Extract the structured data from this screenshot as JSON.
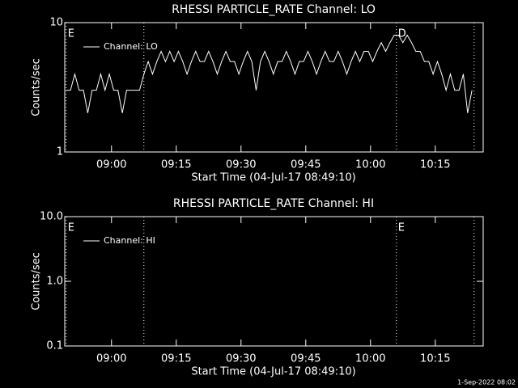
{
  "chart_data": [
    {
      "type": "line",
      "title": "RHESSI PARTICLE_RATE Channel: LO",
      "xlabel": "Start Time (04-Jul-17 08:49:10)",
      "ylabel": "Counts/sec",
      "x": [
        529.5,
        530.5,
        531.5,
        532.5,
        533.5,
        534.5,
        535.5,
        536.5,
        537.5,
        538.5,
        539.5,
        540.5,
        541.5,
        542.5,
        543.5,
        544.5,
        545.5,
        546.5,
        547.5,
        548.5,
        549.5,
        550.5,
        551.5,
        552.5,
        553.5,
        554.5,
        555.5,
        556.5,
        557.5,
        558.5,
        559.5,
        560.5,
        561.5,
        562.5,
        563.5,
        564.5,
        565.5,
        566.5,
        567.5,
        568.5,
        569.5,
        570.5,
        571.5,
        572.5,
        573.5,
        574.5,
        575.5,
        576.5,
        577.5,
        578.5,
        579.5,
        580.5,
        581.5,
        582.5,
        583.5,
        584.5,
        585.5,
        586.5,
        587.5,
        588.5,
        589.5,
        590.5,
        591.5,
        592.5,
        593.5,
        594.5,
        595.5,
        596.5,
        597.5,
        598.5,
        599.5,
        600.5,
        601.5,
        602.5,
        603.5,
        604.5,
        605.5,
        606.5,
        607.5,
        608.5,
        609.5,
        610.5,
        611.5,
        612.5,
        613.5,
        614.5,
        615.5,
        616.5,
        617.5,
        618.5,
        619.5,
        620.5,
        621.5,
        622.5,
        623.5
      ],
      "series": [
        {
          "name": "Channel: LO",
          "color": "#ffffff",
          "values": [
            3,
            3,
            4,
            3,
            3,
            2,
            3,
            3,
            4,
            3,
            4,
            3,
            3,
            2,
            3,
            3,
            3,
            3,
            4,
            5,
            4,
            5,
            6,
            5,
            6,
            5,
            6,
            5,
            4,
            5,
            6,
            5,
            5,
            6,
            5,
            4,
            5,
            6,
            5,
            5,
            4,
            5,
            6,
            5,
            3,
            5,
            6,
            5,
            4,
            5,
            5,
            6,
            5,
            4,
            5,
            5,
            6,
            5,
            4,
            5,
            6,
            5,
            5,
            6,
            5,
            4,
            5,
            6,
            5,
            6,
            6,
            5,
            6,
            7,
            6,
            7,
            8,
            8,
            7,
            8,
            7,
            6,
            6,
            5,
            5,
            4,
            5,
            4,
            3,
            4,
            3,
            3,
            4,
            2,
            3
          ]
        }
      ],
      "xlim": [
        529.17,
        626.1
      ],
      "xticks": [
        {
          "value": 540,
          "label": "09:00"
        },
        {
          "value": 555,
          "label": "09:15"
        },
        {
          "value": 570,
          "label": "09:30"
        },
        {
          "value": 585,
          "label": "09:45"
        },
        {
          "value": 600,
          "label": "10:00"
        },
        {
          "value": 615,
          "label": "10:15"
        }
      ],
      "yscale": "log",
      "ylim": [
        1,
        10
      ],
      "yticks": [
        1,
        10
      ],
      "annotations": [
        {
          "x": 529.5,
          "label": "E"
        },
        {
          "x": 547.5,
          "label": ""
        },
        {
          "x": 606,
          "label": "D"
        },
        {
          "x": 624,
          "label": ""
        }
      ]
    },
    {
      "type": "line",
      "title": "RHESSI PARTICLE_RATE Channel: HI",
      "xlabel": "Start Time (04-Jul-17 08:49:10)",
      "ylabel": "Counts/sec",
      "x": [],
      "series": [
        {
          "name": "Channel: HI",
          "color": "#ffffff",
          "values": []
        }
      ],
      "xlim": [
        529.17,
        626.1
      ],
      "xticks": [
        {
          "value": 540,
          "label": "09:00"
        },
        {
          "value": 555,
          "label": "09:15"
        },
        {
          "value": 570,
          "label": "09:30"
        },
        {
          "value": 585,
          "label": "09:45"
        },
        {
          "value": 600,
          "label": "10:00"
        },
        {
          "value": 615,
          "label": "10:15"
        }
      ],
      "yscale": "log",
      "ylim": [
        0.1,
        10
      ],
      "yticks": [
        {
          "value": 0.1,
          "label": "0.1"
        },
        {
          "value": 1,
          "label": "1.0"
        },
        {
          "value": 10,
          "label": "10.0"
        }
      ],
      "annotations": [
        {
          "x": 529.5,
          "label": "E"
        },
        {
          "x": 547.5,
          "label": ""
        },
        {
          "x": 606,
          "label": "E"
        },
        {
          "x": 624,
          "label": ""
        }
      ]
    }
  ],
  "footer": "1-Sep-2022 08:02"
}
